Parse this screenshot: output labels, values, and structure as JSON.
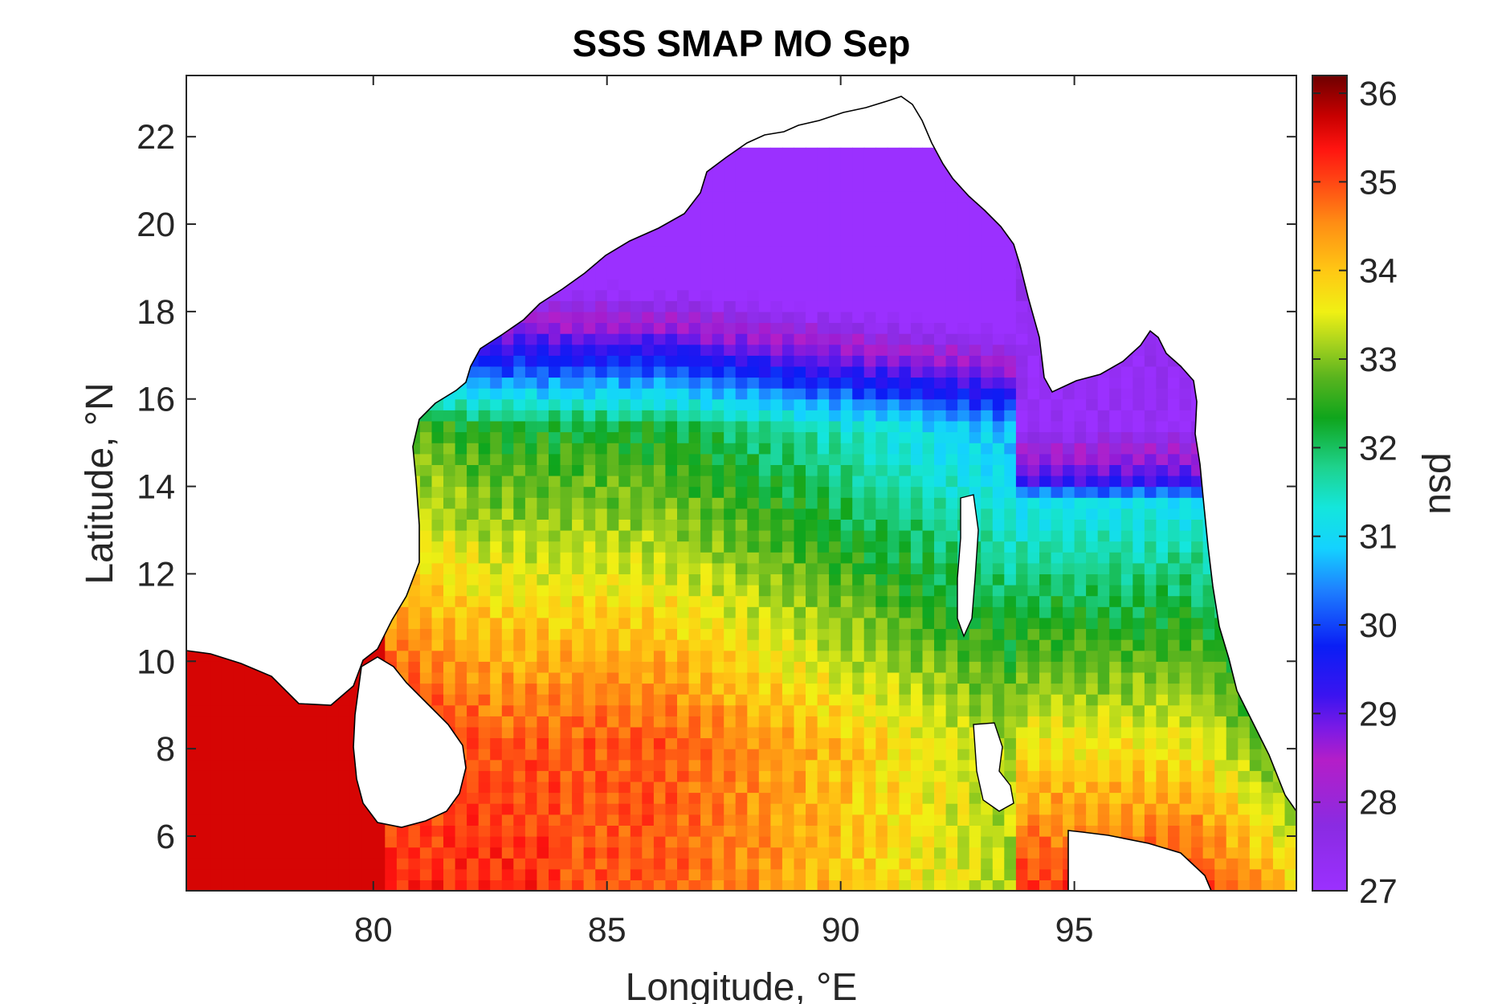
{
  "figure": {
    "title": "SSS SMAP MO Sep",
    "xlabel": "Longitude, °E",
    "ylabel": "Latitude, °N",
    "colorbar_label": "psu"
  },
  "chart_data": {
    "type": "heatmap",
    "title": "SSS SMAP MO Sep",
    "xlabel": "Longitude, °E",
    "ylabel": "Latitude, °N",
    "xlim": [
      76.0,
      99.75
    ],
    "ylim": [
      4.75,
      23.4
    ],
    "x_ticks": [
      80,
      85,
      90,
      95
    ],
    "y_ticks": [
      6,
      8,
      10,
      12,
      14,
      16,
      18,
      20,
      22
    ],
    "colorbar": {
      "label": "psu",
      "range": [
        27,
        36.2
      ],
      "ticks": [
        27,
        28,
        29,
        30,
        31,
        32,
        33,
        34,
        35,
        36
      ],
      "colormap": [
        "#8a2be2",
        "#b31ec8",
        "#6a1fe0",
        "#0a1ef5",
        "#1f7fff",
        "#14dcf0",
        "#18d28c",
        "#0fa51c",
        "#78c81e",
        "#f5f514",
        "#ffb914",
        "#ff7a14",
        "#ff3010",
        "#e01010",
        "#7a0000"
      ]
    },
    "grid": false,
    "land_color": "#ffffff",
    "field_description_values": {
      "north_bay_river_plume_min": 27,
      "andaman_sea_north_min": 27,
      "central_bay_range": [
        33,
        34.5
      ],
      "arabian_sea_sw_max": 35.8
    }
  }
}
